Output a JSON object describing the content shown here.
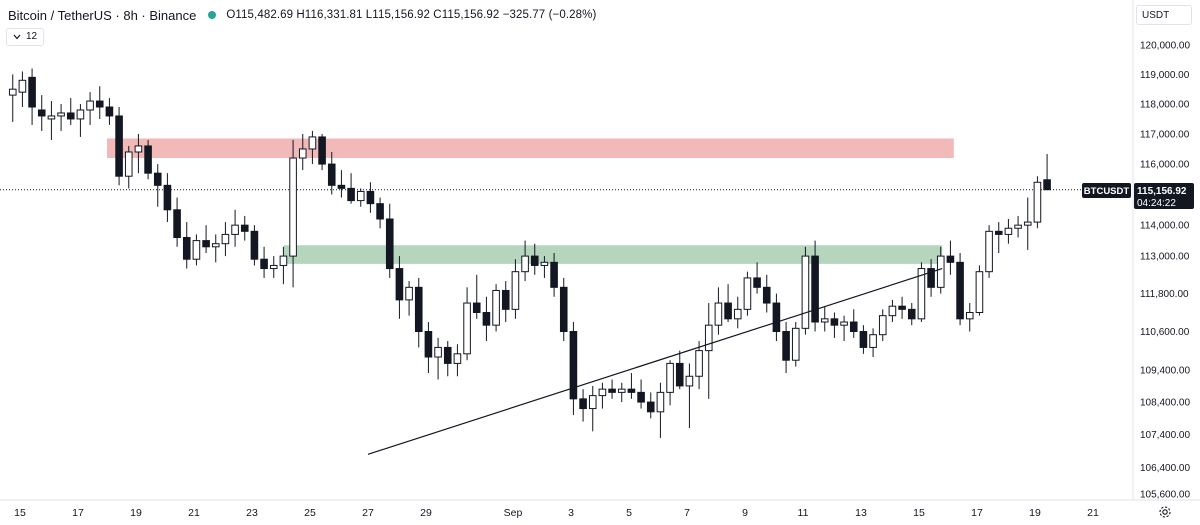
{
  "header": {
    "title": "Bitcoin / TetherUS · 8h · Binance",
    "ohlc": "O115,482.69 H116,331.81 L115,156.92 C115,156.92 −325.77 (−0.28%)",
    "status_color": "#26a69a"
  },
  "indicator_toggle": {
    "icon": "chevron-down-icon",
    "count": "12"
  },
  "currency_button": {
    "label": "USDT"
  },
  "settings_icon": "gear-icon",
  "chart_data": {
    "type": "candlestick",
    "symbol_label": "BTCUSDT",
    "last_price_label": "115,156.92",
    "countdown_label": "04:24:22",
    "last_price": 115156.92,
    "y_scale": "log",
    "y_range": [
      105400,
      120500
    ],
    "x_range_days": [
      "Aug 15",
      "Sep 21"
    ],
    "price_ticks": [
      120000,
      119000,
      118000,
      117000,
      116000,
      114000,
      113000,
      111800,
      110600,
      109400,
      108400,
      107400,
      106400,
      105600
    ],
    "price_tick_labels": [
      "120,000.00",
      "119,000.00",
      "118,000.00",
      "117,000.00",
      "116,000.00",
      "114,000.00",
      "113,000.00",
      "111,800.00",
      "110,600.00",
      "109,400.00",
      "108,400.00",
      "107,400.00",
      "106,400.00",
      "105,600.00"
    ],
    "date_ticks": [
      "15",
      "17",
      "19",
      "21",
      "23",
      "25",
      "27",
      "29",
      "Sep",
      "3",
      "5",
      "7",
      "9",
      "11",
      "13",
      "15",
      "17",
      "19",
      "21"
    ],
    "zones": [
      {
        "name": "resistance",
        "color": "#f2b9b9",
        "from": "Aug 18",
        "to": "Sep 16.2",
        "low": 116200,
        "high": 116850
      },
      {
        "name": "support",
        "color": "#b5d5bd",
        "from": "Aug 24.1",
        "to": "Sep 15.8",
        "low": 112750,
        "high": 113350
      }
    ],
    "trendline": {
      "from": {
        "x": "Aug 27",
        "y": 106800
      },
      "to": {
        "x": "Sep 15.8",
        "y": 112600
      }
    },
    "candles": [
      {
        "o": 118300,
        "h": 119000,
        "l": 117400,
        "c": 118500
      },
      {
        "o": 118400,
        "h": 119100,
        "l": 117900,
        "c": 118800
      },
      {
        "o": 118900,
        "h": 119200,
        "l": 117300,
        "c": 117900
      },
      {
        "o": 117800,
        "h": 118300,
        "l": 117100,
        "c": 117600
      },
      {
        "o": 117500,
        "h": 118100,
        "l": 116800,
        "c": 117600
      },
      {
        "o": 117600,
        "h": 118000,
        "l": 117100,
        "c": 117700
      },
      {
        "o": 117700,
        "h": 118200,
        "l": 117300,
        "c": 117500
      },
      {
        "o": 117500,
        "h": 118000,
        "l": 116900,
        "c": 117800
      },
      {
        "o": 117800,
        "h": 118400,
        "l": 117300,
        "c": 118100
      },
      {
        "o": 118100,
        "h": 118600,
        "l": 117500,
        "c": 117900
      },
      {
        "o": 117900,
        "h": 118200,
        "l": 117300,
        "c": 117600
      },
      {
        "o": 117600,
        "h": 117900,
        "l": 115300,
        "c": 115600
      },
      {
        "o": 115600,
        "h": 116600,
        "l": 115200,
        "c": 116400
      },
      {
        "o": 116400,
        "h": 117000,
        "l": 115700,
        "c": 116600
      },
      {
        "o": 116600,
        "h": 116800,
        "l": 115500,
        "c": 115700
      },
      {
        "o": 115700,
        "h": 116000,
        "l": 114600,
        "c": 115300
      },
      {
        "o": 115300,
        "h": 115700,
        "l": 114100,
        "c": 114500
      },
      {
        "o": 114500,
        "h": 114900,
        "l": 113300,
        "c": 113600
      },
      {
        "o": 113600,
        "h": 114100,
        "l": 112600,
        "c": 112900
      },
      {
        "o": 112900,
        "h": 113700,
        "l": 112700,
        "c": 113500
      },
      {
        "o": 113500,
        "h": 114000,
        "l": 113100,
        "c": 113300
      },
      {
        "o": 113300,
        "h": 113700,
        "l": 112800,
        "c": 113400
      },
      {
        "o": 113400,
        "h": 114100,
        "l": 113000,
        "c": 113700
      },
      {
        "o": 113700,
        "h": 114500,
        "l": 113300,
        "c": 114000
      },
      {
        "o": 114000,
        "h": 114300,
        "l": 113500,
        "c": 113800
      },
      {
        "o": 113800,
        "h": 114000,
        "l": 112700,
        "c": 112900
      },
      {
        "o": 112900,
        "h": 113300,
        "l": 112300,
        "c": 112600
      },
      {
        "o": 112600,
        "h": 113000,
        "l": 112300,
        "c": 112700
      },
      {
        "o": 112700,
        "h": 113300,
        "l": 112100,
        "c": 113000
      },
      {
        "o": 113000,
        "h": 116800,
        "l": 112000,
        "c": 116200
      },
      {
        "o": 116200,
        "h": 117000,
        "l": 115800,
        "c": 116500
      },
      {
        "o": 116500,
        "h": 117100,
        "l": 116000,
        "c": 116900
      },
      {
        "o": 116900,
        "h": 117000,
        "l": 115800,
        "c": 116000
      },
      {
        "o": 116000,
        "h": 116400,
        "l": 115000,
        "c": 115300
      },
      {
        "o": 115300,
        "h": 115800,
        "l": 114900,
        "c": 115200
      },
      {
        "o": 115200,
        "h": 115700,
        "l": 114700,
        "c": 114800
      },
      {
        "o": 114800,
        "h": 115200,
        "l": 114600,
        "c": 115100
      },
      {
        "o": 115100,
        "h": 115400,
        "l": 114400,
        "c": 114700
      },
      {
        "o": 114700,
        "h": 114900,
        "l": 113900,
        "c": 114200
      },
      {
        "o": 114200,
        "h": 114700,
        "l": 112300,
        "c": 112600
      },
      {
        "o": 112600,
        "h": 113000,
        "l": 111000,
        "c": 111600
      },
      {
        "o": 111600,
        "h": 112200,
        "l": 111100,
        "c": 112000
      },
      {
        "o": 112000,
        "h": 112300,
        "l": 110100,
        "c": 110600
      },
      {
        "o": 110600,
        "h": 110900,
        "l": 109300,
        "c": 109800
      },
      {
        "o": 109800,
        "h": 110400,
        "l": 109100,
        "c": 110100
      },
      {
        "o": 110100,
        "h": 110300,
        "l": 109200,
        "c": 109600
      },
      {
        "o": 109600,
        "h": 110200,
        "l": 109200,
        "c": 109900
      },
      {
        "o": 109900,
        "h": 112000,
        "l": 109700,
        "c": 111500
      },
      {
        "o": 111500,
        "h": 112400,
        "l": 111000,
        "c": 111200
      },
      {
        "o": 111200,
        "h": 111700,
        "l": 110300,
        "c": 110800
      },
      {
        "o": 110800,
        "h": 112100,
        "l": 110600,
        "c": 111900
      },
      {
        "o": 111900,
        "h": 112200,
        "l": 110900,
        "c": 111300
      },
      {
        "o": 111300,
        "h": 112900,
        "l": 111000,
        "c": 112500
      },
      {
        "o": 112500,
        "h": 113500,
        "l": 112200,
        "c": 113000
      },
      {
        "o": 113000,
        "h": 113400,
        "l": 112400,
        "c": 112700
      },
      {
        "o": 112700,
        "h": 113000,
        "l": 112300,
        "c": 112800
      },
      {
        "o": 112800,
        "h": 113100,
        "l": 111700,
        "c": 112000
      },
      {
        "o": 112000,
        "h": 112300,
        "l": 110300,
        "c": 110600
      },
      {
        "o": 110600,
        "h": 110900,
        "l": 108000,
        "c": 108500
      },
      {
        "o": 108500,
        "h": 108800,
        "l": 107800,
        "c": 108200
      },
      {
        "o": 108200,
        "h": 108900,
        "l": 107500,
        "c": 108600
      },
      {
        "o": 108600,
        "h": 109000,
        "l": 108200,
        "c": 108800
      },
      {
        "o": 108800,
        "h": 109100,
        "l": 108500,
        "c": 108700
      },
      {
        "o": 108700,
        "h": 109000,
        "l": 108400,
        "c": 108800
      },
      {
        "o": 108800,
        "h": 109300,
        "l": 108500,
        "c": 108700
      },
      {
        "o": 108700,
        "h": 109100,
        "l": 108200,
        "c": 108400
      },
      {
        "o": 108400,
        "h": 108700,
        "l": 107900,
        "c": 108100
      },
      {
        "o": 108100,
        "h": 109000,
        "l": 107300,
        "c": 108700
      },
      {
        "o": 108700,
        "h": 109700,
        "l": 108300,
        "c": 109600
      },
      {
        "o": 109600,
        "h": 110000,
        "l": 108800,
        "c": 108900
      },
      {
        "o": 108900,
        "h": 109600,
        "l": 107600,
        "c": 109200
      },
      {
        "o": 109200,
        "h": 110300,
        "l": 108800,
        "c": 110000
      },
      {
        "o": 110000,
        "h": 111500,
        "l": 108500,
        "c": 110800
      },
      {
        "o": 110800,
        "h": 112000,
        "l": 110500,
        "c": 111500
      },
      {
        "o": 111500,
        "h": 112100,
        "l": 110900,
        "c": 111000
      },
      {
        "o": 111000,
        "h": 111700,
        "l": 110700,
        "c": 111300
      },
      {
        "o": 111300,
        "h": 112500,
        "l": 111100,
        "c": 112300
      },
      {
        "o": 112300,
        "h": 112800,
        "l": 111800,
        "c": 112000
      },
      {
        "o": 112000,
        "h": 112400,
        "l": 111200,
        "c": 111500
      },
      {
        "o": 111500,
        "h": 111800,
        "l": 110300,
        "c": 110600
      },
      {
        "o": 110600,
        "h": 110900,
        "l": 109300,
        "c": 109700
      },
      {
        "o": 109700,
        "h": 110900,
        "l": 109500,
        "c": 110700
      },
      {
        "o": 110700,
        "h": 113300,
        "l": 110500,
        "c": 113000
      },
      {
        "o": 113000,
        "h": 113500,
        "l": 110600,
        "c": 110900
      },
      {
        "o": 110900,
        "h": 111400,
        "l": 110600,
        "c": 111000
      },
      {
        "o": 111000,
        "h": 111200,
        "l": 110400,
        "c": 110800
      },
      {
        "o": 110800,
        "h": 111100,
        "l": 110300,
        "c": 110900
      },
      {
        "o": 110900,
        "h": 111300,
        "l": 110400,
        "c": 110600
      },
      {
        "o": 110600,
        "h": 110800,
        "l": 109900,
        "c": 110100
      },
      {
        "o": 110100,
        "h": 110700,
        "l": 109800,
        "c": 110500
      },
      {
        "o": 110500,
        "h": 111300,
        "l": 110300,
        "c": 111100
      },
      {
        "o": 111100,
        "h": 111600,
        "l": 110900,
        "c": 111400
      },
      {
        "o": 111400,
        "h": 111700,
        "l": 111000,
        "c": 111300
      },
      {
        "o": 111300,
        "h": 111500,
        "l": 110800,
        "c": 111000
      },
      {
        "o": 111000,
        "h": 112800,
        "l": 110900,
        "c": 112600
      },
      {
        "o": 112600,
        "h": 112900,
        "l": 111700,
        "c": 112000
      },
      {
        "o": 112000,
        "h": 113300,
        "l": 111800,
        "c": 113000
      },
      {
        "o": 113000,
        "h": 113500,
        "l": 112400,
        "c": 112800
      },
      {
        "o": 112800,
        "h": 113100,
        "l": 110800,
        "c": 111000
      },
      {
        "o": 111000,
        "h": 111500,
        "l": 110600,
        "c": 111200
      },
      {
        "o": 111200,
        "h": 112700,
        "l": 111100,
        "c": 112500
      },
      {
        "o": 112500,
        "h": 114000,
        "l": 112300,
        "c": 113800
      },
      {
        "o": 113800,
        "h": 114100,
        "l": 113100,
        "c": 113700
      },
      {
        "o": 113700,
        "h": 114200,
        "l": 113400,
        "c": 113900
      },
      {
        "o": 113900,
        "h": 114300,
        "l": 113600,
        "c": 114000
      },
      {
        "o": 114000,
        "h": 114900,
        "l": 113200,
        "c": 114100
      },
      {
        "o": 114100,
        "h": 115600,
        "l": 113900,
        "c": 115400
      },
      {
        "o": 115482.69,
        "h": 116331.81,
        "l": 115156.92,
        "c": 115156.92
      }
    ]
  }
}
